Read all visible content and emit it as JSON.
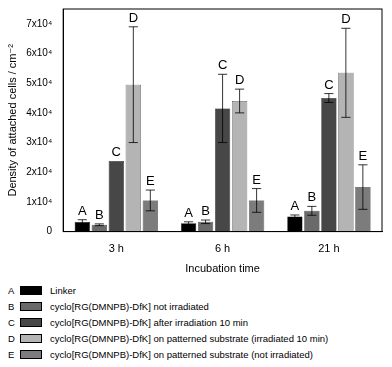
{
  "chart_data": {
    "type": "bar",
    "x_label": "Incubation time",
    "y_label": "Density of attached cells / cm⁻²",
    "categories": [
      "3 h",
      "6 h",
      "21 h"
    ],
    "series": [
      {
        "name": "Linker",
        "label": "A",
        "color": "#000000",
        "values": [
          3200,
          2800,
          5100
        ],
        "errors": [
          800,
          500,
          500
        ]
      },
      {
        "name": "cyclo[RG(DMNPB)-DfK] not irradiated",
        "label": "B",
        "color": "#6a6a6a",
        "values": [
          2300,
          3300,
          7000
        ],
        "errors": [
          300,
          600,
          1500
        ]
      },
      {
        "name": "cyclo[RG(DMNPB)-DfK] after irradiation 10 min",
        "label": "C",
        "color": "#474747",
        "values": [
          23800,
          41500,
          45000
        ],
        "errors": [
          0,
          11500,
          1500
        ]
      },
      {
        "name": "cyclo[RG(DMNPB)-DfK] on patterned substrate (irradiated 10 min)",
        "label": "D",
        "color": "#b4b4b4",
        "values": [
          49500,
          44000,
          53500
        ],
        "errors": [
          19500,
          4000,
          15000
        ]
      },
      {
        "name": "cyclo[RG(DMNPB)-DfK] on patterned substrate (not irradiated)",
        "label": "E",
        "color": "#7c7c7c",
        "values": [
          10500,
          10500,
          15000
        ],
        "errors": [
          3500,
          4000,
          7500
        ]
      }
    ],
    "ylim": [
      0,
      75000
    ],
    "yticks": [
      0,
      {
        "value": 10000,
        "label": "1x10⁴"
      },
      {
        "value": 20000,
        "label": "2x10⁴"
      },
      {
        "value": 30000,
        "label": "3x10⁴"
      },
      {
        "value": 40000,
        "label": "4x10⁴"
      },
      {
        "value": 50000,
        "label": "5x10⁴"
      },
      {
        "value": 60000,
        "label": "6x10⁴"
      },
      {
        "value": 70000,
        "label": "7x10⁴"
      }
    ],
    "grid": false,
    "legend": "bottom"
  }
}
